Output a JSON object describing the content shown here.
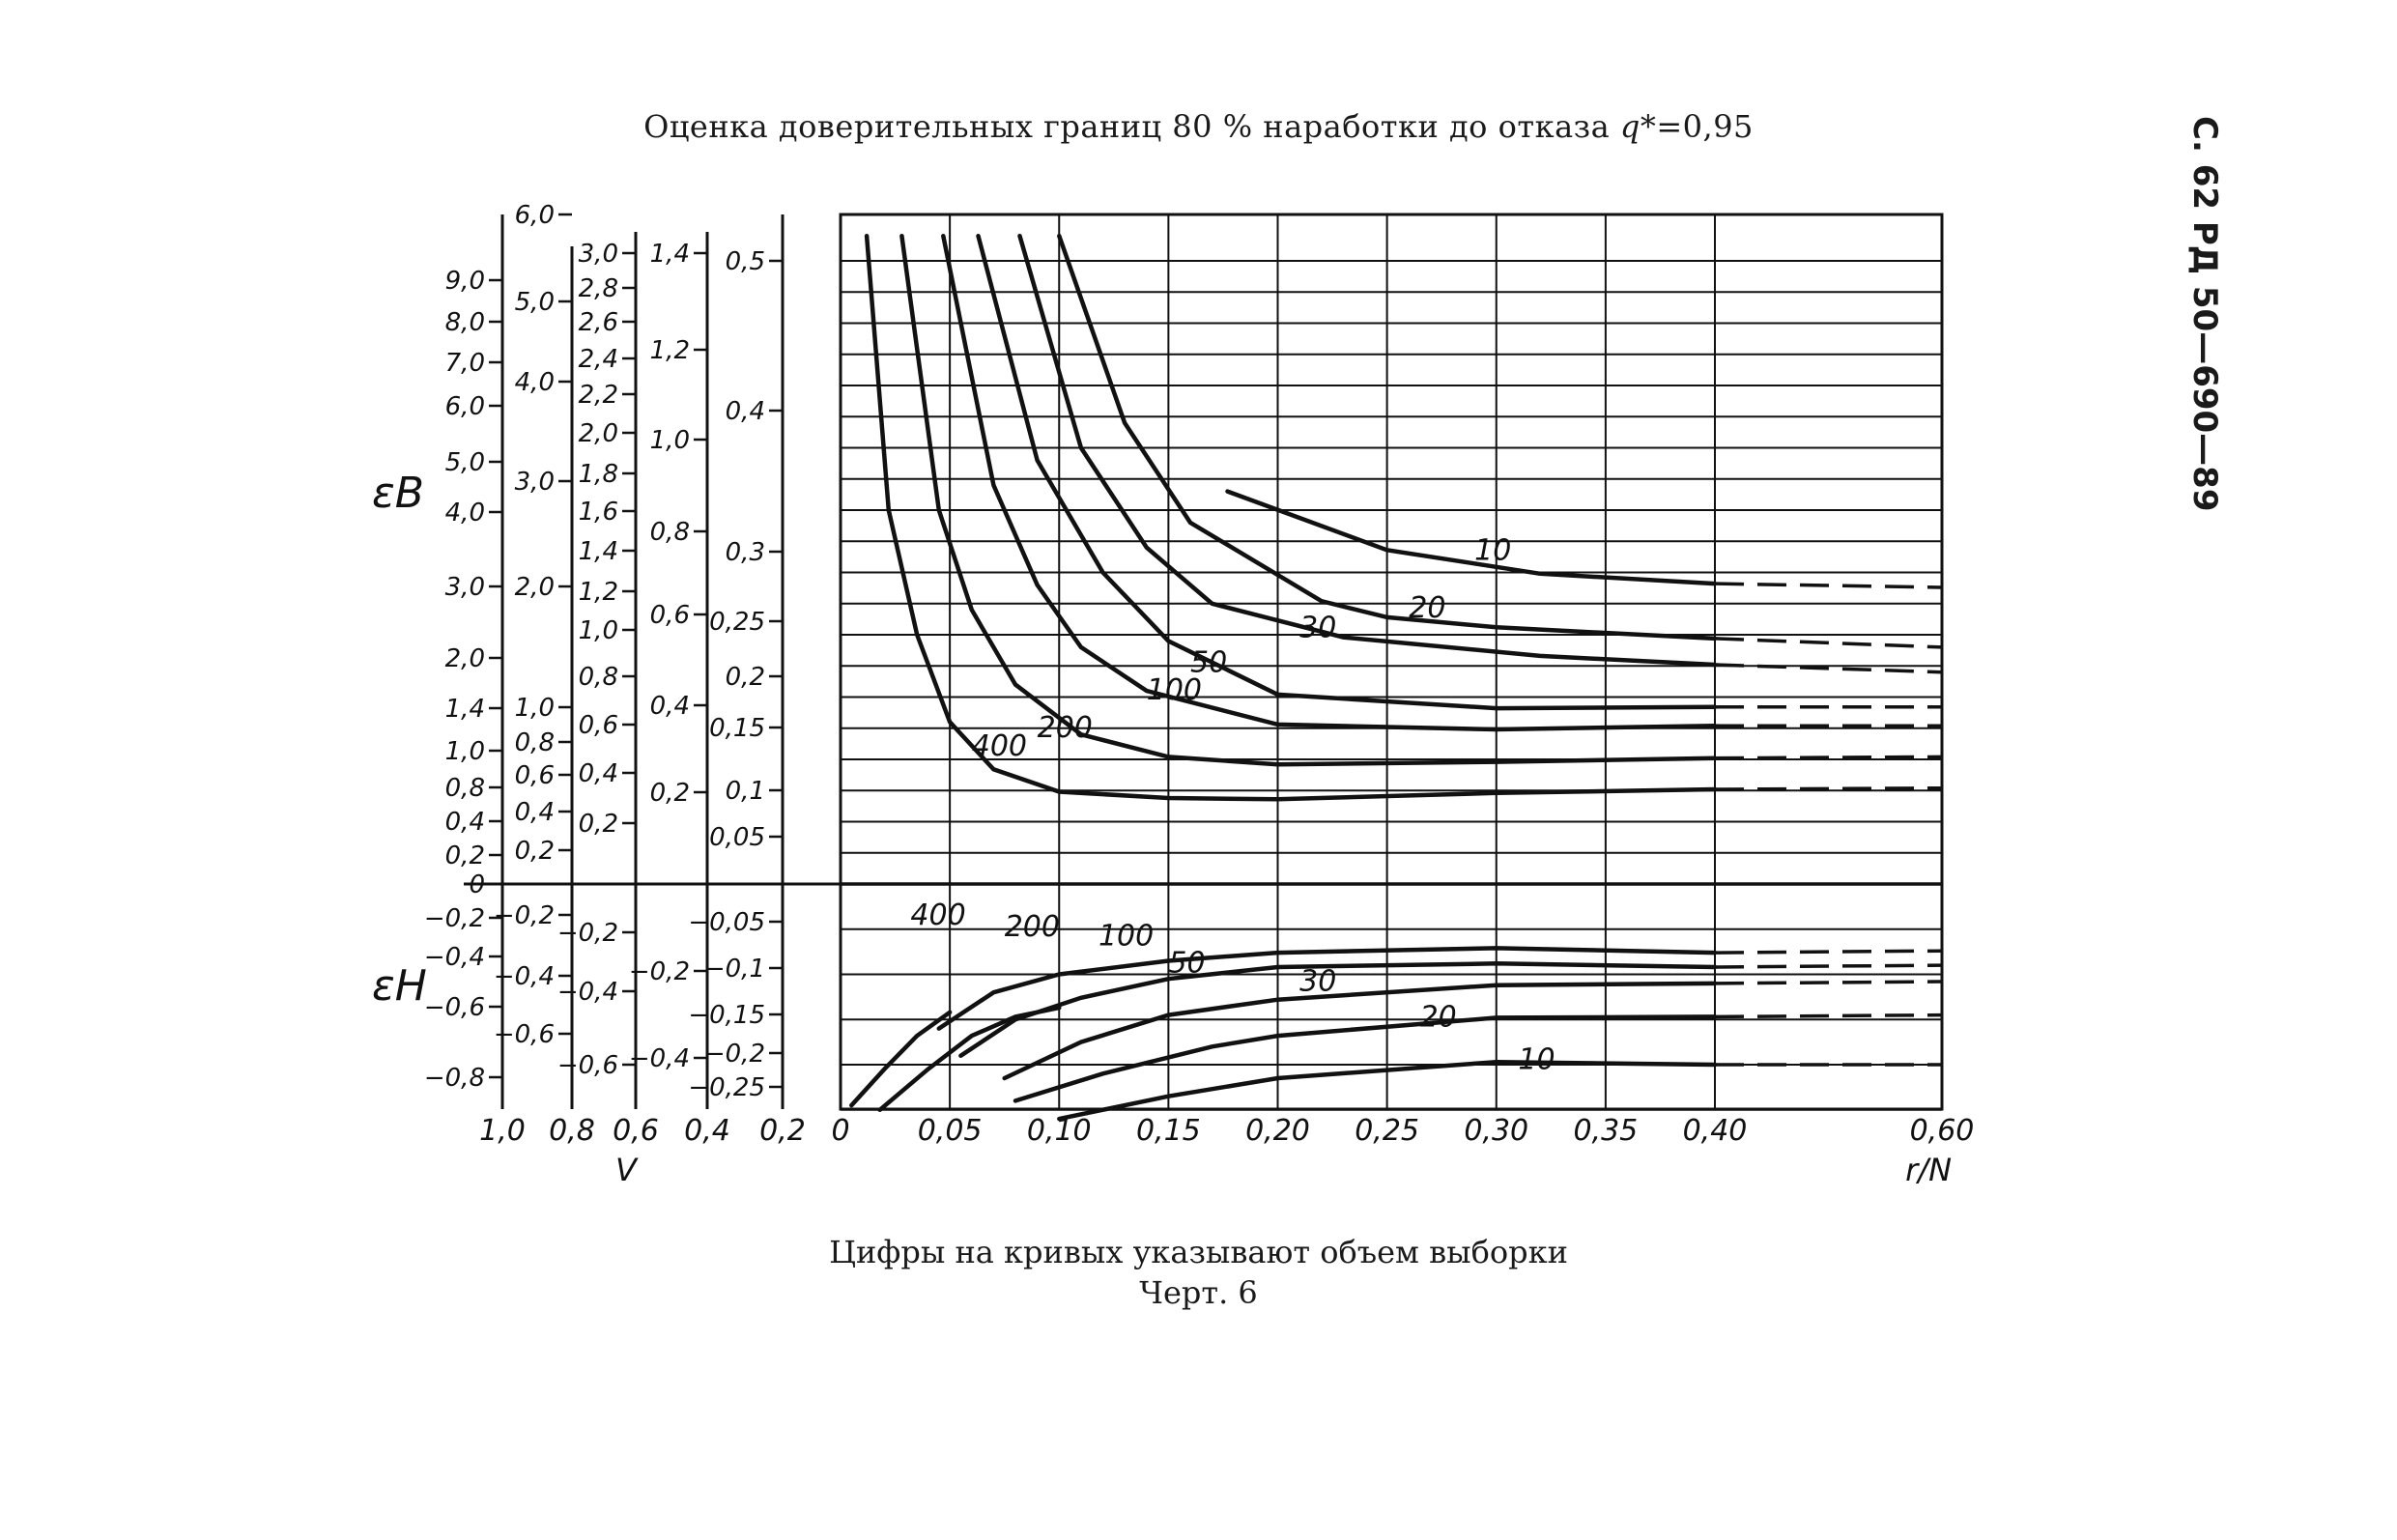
{
  "header": {
    "title_main": "Оценка доверительных границ 80 % наработки до отказа ",
    "title_q": "q*",
    "title_tail": "=0,95",
    "side_label": "С. 62 РД 50—690—89"
  },
  "caption": {
    "line1": "Цифры на кривых указывают объем выборки",
    "line2": "Черт. 6"
  },
  "chart_data": {
    "type": "line",
    "title": "",
    "xlabel": "r/N",
    "xlabel_v": "V",
    "ylabel_upper": "εB",
    "ylabel_lower": "εH",
    "grid": true,
    "x_ticks": [
      "0",
      "0,05",
      "0,10",
      "0,15",
      "0,20",
      "0,25",
      "0,30",
      "0,35",
      "0,40",
      "0,60"
    ],
    "v_ticks": [
      "1,0",
      "0,8",
      "0,6",
      "0,4",
      "0,2"
    ],
    "scales": {
      "s1": [
        "9,0",
        "8,0",
        "7,0",
        "6,0",
        "5,0",
        "4,0",
        "3,0",
        "2,0",
        "1,4",
        "1,0",
        "0,8",
        "0,4",
        "0,2",
        "0",
        "−0,2",
        "−0,4",
        "−0,6",
        "−0,8"
      ],
      "s2": [
        "6,0",
        "5,0",
        "4,0",
        "3,0",
        "2,0",
        "1,0",
        "0,8",
        "0,6",
        "0,4",
        "0,2",
        "−0,2",
        "−0,4",
        "−0,6"
      ],
      "s3": [
        "3,0",
        "2,8",
        "2,6",
        "2,4",
        "2,2",
        "2,0",
        "1,8",
        "1,6",
        "1,4",
        "1,2",
        "1,0",
        "0,8",
        "0,6",
        "0,4",
        "0,2",
        "−0,2",
        "−0,4",
        "−0,6"
      ],
      "s4": [
        "1,4",
        "1,2",
        "1,0",
        "0,8",
        "0,6",
        "0,4",
        "0,2",
        "−0,2",
        "−0,4"
      ],
      "s5": [
        "0,5",
        "0,4",
        "0,3",
        "0,25",
        "0,2",
        "0,15",
        "0,1",
        "0,05",
        "−0,05",
        "−0,1",
        "−0,15",
        "−0,2",
        "−0,25"
      ]
    },
    "upper_series": [
      {
        "name": "10",
        "points": [
          [
            0.177,
            0.315
          ],
          [
            0.25,
            0.268
          ],
          [
            0.32,
            0.249
          ],
          [
            0.4,
            0.241
          ],
          [
            0.6,
            0.238
          ]
        ]
      },
      {
        "name": "20",
        "points": [
          [
            0.1,
            0.52
          ],
          [
            0.13,
            0.37
          ],
          [
            0.16,
            0.29
          ],
          [
            0.22,
            0.227
          ],
          [
            0.25,
            0.214
          ],
          [
            0.3,
            0.206
          ],
          [
            0.4,
            0.197
          ],
          [
            0.6,
            0.19
          ]
        ]
      },
      {
        "name": "30",
        "points": [
          [
            0.082,
            0.52
          ],
          [
            0.11,
            0.35
          ],
          [
            0.14,
            0.27
          ],
          [
            0.17,
            0.225
          ],
          [
            0.23,
            0.198
          ],
          [
            0.32,
            0.183
          ],
          [
            0.4,
            0.176
          ],
          [
            0.6,
            0.17
          ]
        ]
      },
      {
        "name": "50",
        "points": [
          [
            0.063,
            0.52
          ],
          [
            0.09,
            0.34
          ],
          [
            0.12,
            0.25
          ],
          [
            0.15,
            0.195
          ],
          [
            0.2,
            0.152
          ],
          [
            0.3,
            0.141
          ],
          [
            0.4,
            0.142
          ],
          [
            0.6,
            0.142
          ]
        ]
      },
      {
        "name": "100",
        "points": [
          [
            0.047,
            0.52
          ],
          [
            0.07,
            0.32
          ],
          [
            0.09,
            0.24
          ],
          [
            0.11,
            0.19
          ],
          [
            0.14,
            0.155
          ],
          [
            0.2,
            0.128
          ],
          [
            0.3,
            0.124
          ],
          [
            0.4,
            0.127
          ],
          [
            0.6,
            0.127
          ]
        ]
      },
      {
        "name": "200",
        "points": [
          [
            0.028,
            0.52
          ],
          [
            0.045,
            0.3
          ],
          [
            0.06,
            0.22
          ],
          [
            0.08,
            0.16
          ],
          [
            0.11,
            0.12
          ],
          [
            0.15,
            0.102
          ],
          [
            0.2,
            0.096
          ],
          [
            0.3,
            0.098
          ],
          [
            0.4,
            0.101
          ],
          [
            0.6,
            0.102
          ]
        ]
      },
      {
        "name": "400",
        "points": [
          [
            0.012,
            0.52
          ],
          [
            0.022,
            0.3
          ],
          [
            0.035,
            0.2
          ],
          [
            0.05,
            0.13
          ],
          [
            0.07,
            0.092
          ],
          [
            0.1,
            0.074
          ],
          [
            0.15,
            0.069
          ],
          [
            0.2,
            0.068
          ],
          [
            0.3,
            0.073
          ],
          [
            0.4,
            0.076
          ],
          [
            0.6,
            0.077
          ]
        ]
      }
    ],
    "lower_series": [
      {
        "name": "400",
        "points": [
          [
            0.005,
            -0.245
          ],
          [
            0.02,
            -0.205
          ],
          [
            0.035,
            -0.168
          ],
          [
            0.05,
            -0.142
          ]
        ]
      },
      {
        "name": "200",
        "points": [
          [
            0.018,
            -0.25
          ],
          [
            0.04,
            -0.205
          ],
          [
            0.06,
            -0.168
          ],
          [
            0.08,
            -0.147
          ],
          [
            0.1,
            -0.137
          ]
        ]
      },
      {
        "name": "100",
        "points": [
          [
            0.045,
            -0.16
          ],
          [
            0.07,
            -0.12
          ],
          [
            0.1,
            -0.1
          ],
          [
            0.15,
            -0.085
          ],
          [
            0.2,
            -0.076
          ],
          [
            0.3,
            -0.071
          ],
          [
            0.4,
            -0.076
          ],
          [
            0.6,
            -0.074
          ]
        ]
      },
      {
        "name": "50",
        "points": [
          [
            0.055,
            -0.19
          ],
          [
            0.08,
            -0.15
          ],
          [
            0.11,
            -0.126
          ],
          [
            0.15,
            -0.105
          ],
          [
            0.2,
            -0.092
          ],
          [
            0.3,
            -0.088
          ],
          [
            0.4,
            -0.092
          ],
          [
            0.6,
            -0.09
          ]
        ]
      },
      {
        "name": "30",
        "points": [
          [
            0.075,
            -0.215
          ],
          [
            0.11,
            -0.175
          ],
          [
            0.15,
            -0.145
          ],
          [
            0.2,
            -0.128
          ],
          [
            0.3,
            -0.112
          ],
          [
            0.4,
            -0.11
          ],
          [
            0.6,
            -0.108
          ]
        ]
      },
      {
        "name": "20",
        "points": [
          [
            0.08,
            -0.24
          ],
          [
            0.12,
            -0.21
          ],
          [
            0.17,
            -0.18
          ],
          [
            0.2,
            -0.168
          ],
          [
            0.3,
            -0.148
          ],
          [
            0.4,
            -0.147
          ],
          [
            0.6,
            -0.145
          ]
        ]
      },
      {
        "name": "10",
        "points": [
          [
            0.1,
            -0.26
          ],
          [
            0.15,
            -0.235
          ],
          [
            0.2,
            -0.215
          ],
          [
            0.3,
            -0.197
          ],
          [
            0.4,
            -0.2
          ],
          [
            0.6,
            -0.2
          ]
        ]
      }
    ],
    "upper_ylim": [
      0,
      0.52
    ],
    "lower_ylim": [
      -0.26,
      0
    ],
    "xlim": [
      0,
      0.6
    ]
  }
}
